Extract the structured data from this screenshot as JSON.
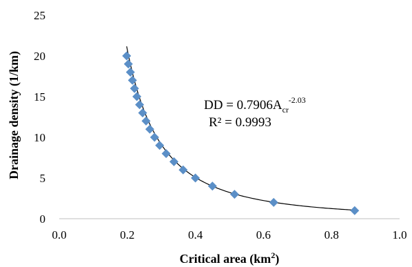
{
  "chart_data": {
    "type": "scatter",
    "xlabel": "Critical area (km",
    "xlabel_sup": "2",
    "xlabel_tail": ")",
    "ylabel": "Drainage density (1/km)",
    "xlim": [
      0.0,
      1.0
    ],
    "ylim": [
      0,
      25
    ],
    "xticks": [
      "0.0",
      "0.2",
      "0.4",
      "0.6",
      "0.8",
      "1.0"
    ],
    "yticks": [
      "0",
      "5",
      "10",
      "15",
      "20",
      "25"
    ],
    "marker_color": "#5b8fc7",
    "line_color": "#000000",
    "points": [
      {
        "x": 0.198,
        "y": 20
      },
      {
        "x": 0.203,
        "y": 19
      },
      {
        "x": 0.209,
        "y": 18
      },
      {
        "x": 0.215,
        "y": 17
      },
      {
        "x": 0.221,
        "y": 16
      },
      {
        "x": 0.228,
        "y": 15
      },
      {
        "x": 0.236,
        "y": 14
      },
      {
        "x": 0.245,
        "y": 13
      },
      {
        "x": 0.255,
        "y": 12
      },
      {
        "x": 0.266,
        "y": 11
      },
      {
        "x": 0.28,
        "y": 10
      },
      {
        "x": 0.295,
        "y": 9
      },
      {
        "x": 0.314,
        "y": 8
      },
      {
        "x": 0.337,
        "y": 7
      },
      {
        "x": 0.364,
        "y": 6
      },
      {
        "x": 0.4,
        "y": 5
      },
      {
        "x": 0.45,
        "y": 4
      },
      {
        "x": 0.515,
        "y": 3
      },
      {
        "x": 0.63,
        "y": 2
      },
      {
        "x": 0.868,
        "y": 1
      }
    ],
    "trendline": {
      "type": "power",
      "coefficient": 0.7906,
      "exponent": -2.03,
      "x_range": [
        0.198,
        0.868
      ]
    },
    "equation": {
      "prefix": "DD = 0.7906A",
      "sub": "cr",
      "sup": "-2.03",
      "r2": "R² = 0.9993"
    }
  }
}
